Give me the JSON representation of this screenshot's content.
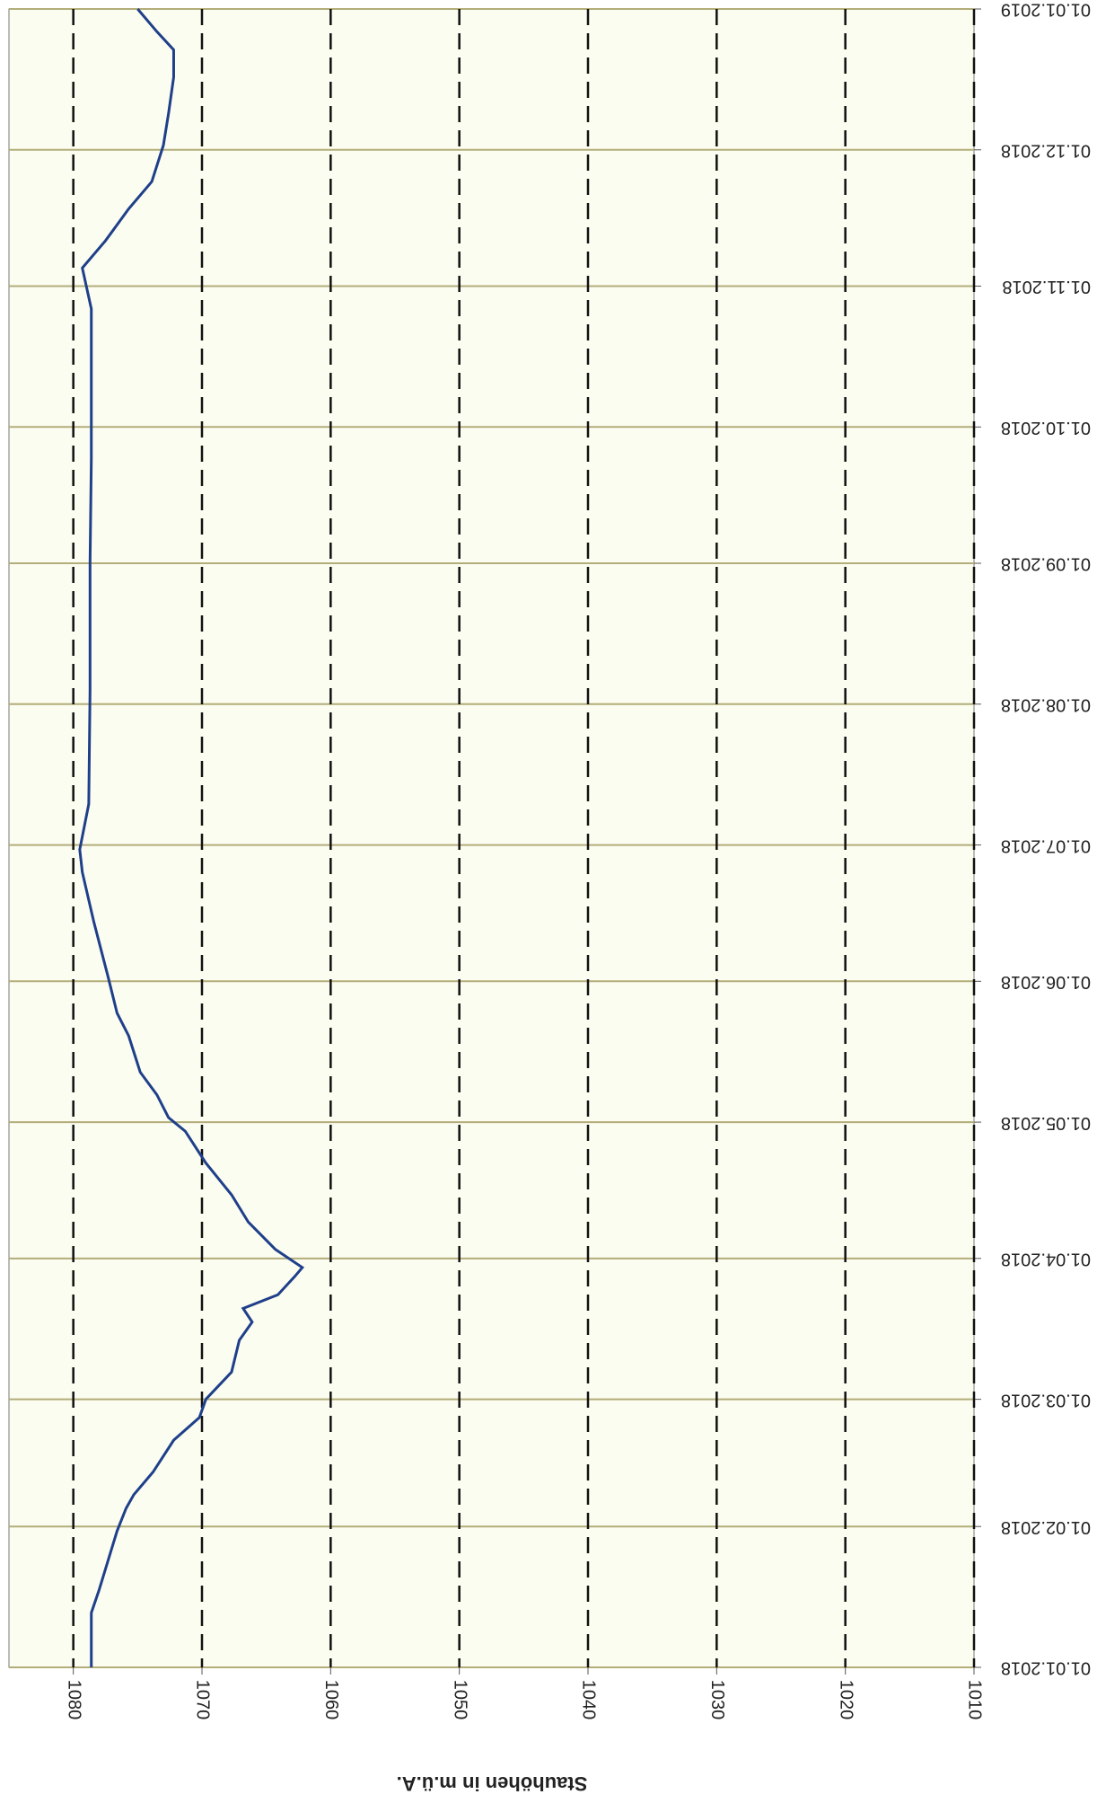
{
  "chart_data": {
    "type": "line",
    "y_label": "Stauhöhen in m.ü.A.",
    "x": [
      "01.01.2018",
      "13.01.2018",
      "18.01.2018",
      "31.01.2018",
      "05.02.2018",
      "08.02.2018",
      "13.02.2018",
      "20.02.2018",
      "25.02.2018",
      "01.03.2018",
      "07.03.2018",
      "14.03.2018",
      "18.03.2018",
      "21.03.2018",
      "24.03.2018",
      "28.03.2018",
      "30.03.2018",
      "03.04.2018",
      "09.04.2018",
      "15.04.2018",
      "22.04.2018",
      "29.04.2018",
      "02.05.2018",
      "07.05.2018",
      "12.05.2018",
      "20.05.2018",
      "25.05.2018",
      "02.06.2018",
      "14.06.2018",
      "25.06.2018",
      "30.06.2018",
      "10.07.2018",
      "04.08.2018",
      "01.09.2018",
      "24.09.2018",
      "12.10.2018",
      "27.10.2018",
      "05.11.2018",
      "11.11.2018",
      "18.11.2018",
      "24.11.2018",
      "02.12.2018",
      "09.12.2018",
      "17.12.2018",
      "23.12.2018",
      "27.12.2018",
      "01.01.2019"
    ],
    "series": [
      {
        "name": "Stauhöhe",
        "color": "#1f3f8a",
        "values": [
          1078.6,
          1078.6,
          1078.0,
          1076.6,
          1075.9,
          1075.3,
          1073.8,
          1072.2,
          1070.2,
          1069.7,
          1067.7,
          1067.1,
          1066.1,
          1066.8,
          1064.1,
          1062.8,
          1062.2,
          1064.3,
          1066.4,
          1067.7,
          1069.7,
          1071.3,
          1072.6,
          1073.5,
          1074.8,
          1075.7,
          1076.6,
          1077.3,
          1078.4,
          1079.3,
          1079.5,
          1078.8,
          1078.7,
          1078.7,
          1078.6,
          1078.6,
          1078.6,
          1079.3,
          1077.5,
          1075.7,
          1073.9,
          1073.0,
          1072.6,
          1072.2,
          1072.2,
          1073.5,
          1075.0
        ]
      }
    ],
    "xlim": [
      "01.01.2018",
      "01.01.2019"
    ],
    "xticks": [
      "01.01.2018",
      "01.02.2018",
      "01.03.2018",
      "01.04.2018",
      "01.05.2018",
      "01.06.2018",
      "01.07.2018",
      "01.08.2018",
      "01.09.2018",
      "01.10.2018",
      "01.11.2018",
      "01.12.2018",
      "01.01.2019"
    ],
    "ylim": [
      1010,
      1085
    ],
    "yticks": [
      1010,
      1020,
      1030,
      1040,
      1050,
      1060,
      1070,
      1080
    ],
    "grid": true
  }
}
